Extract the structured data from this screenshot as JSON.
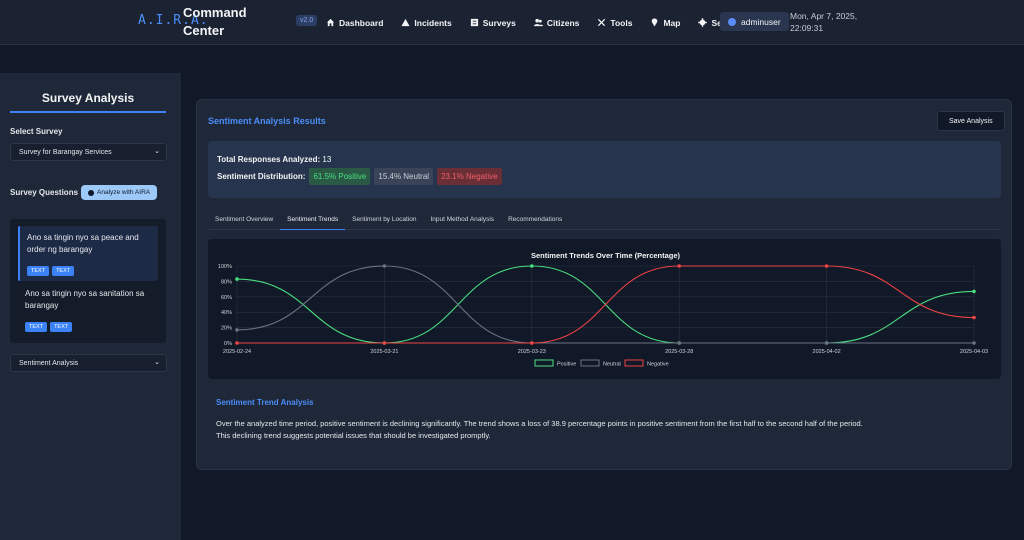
{
  "header": {
    "logo": "A.I.R.A.",
    "title": "Command Center",
    "version": "v2.0",
    "nav": [
      {
        "label": "Dashboard",
        "icon": "home-icon"
      },
      {
        "label": "Incidents",
        "icon": "warning-icon"
      },
      {
        "label": "Surveys",
        "icon": "survey-icon"
      },
      {
        "label": "Citizens",
        "icon": "users-icon"
      },
      {
        "label": "Tools",
        "icon": "tools-icon"
      },
      {
        "label": "Map",
        "icon": "map-pin-icon"
      },
      {
        "label": "Settings",
        "icon": "gear-icon"
      }
    ],
    "user": "adminuser",
    "date": "Mon, Apr 7, 2025,",
    "time": "22:09:31"
  },
  "sidebar": {
    "title": "Survey Analysis",
    "select_survey_label": "Select Survey",
    "selected_survey": "Survey for Barangay Services",
    "questions_label": "Survey Questions",
    "analyze_button": "Analyze with AIRA",
    "questions": [
      {
        "text": "Ano sa tingin nyo sa peace and order ng barangay",
        "tags": [
          "TEXT",
          "TEXT"
        ]
      },
      {
        "text": "Ano sa tingin nyo sa sanitation sa barangay",
        "tags": [
          "TEXT",
          "TEXT"
        ]
      }
    ],
    "analysis_select": "Sentiment Analysis"
  },
  "main": {
    "title": "Sentiment Analysis Results",
    "save_button": "Save Analysis",
    "total_label": "Total Responses Analyzed:",
    "total_value": "13",
    "distribution_label": "Sentiment Distribution:",
    "positive": "61.5% Positive",
    "neutral": "15.4% Neutral",
    "negative": "23.1% Negative",
    "tabs": [
      "Sentiment Overview",
      "Sentiment Trends",
      "Sentiment by Location",
      "Input Method Analysis",
      "Recommendations"
    ],
    "active_tab": 1,
    "analysis_title": "Sentiment Trend Analysis",
    "analysis_text_1": "Over the analyzed time period, positive sentiment is declining significantly. The trend shows a loss of 38.9 percentage points in positive sentiment from the first half to the second half of the period.",
    "analysis_text_2": "This declining trend suggests potential issues that should be investigated promptly."
  },
  "chart_data": {
    "type": "line",
    "title": "Sentiment Trends Over Time (Percentage)",
    "categories": [
      "2025-02-24",
      "2025-03-21",
      "2025-03-23",
      "2025-03-28",
      "2025-04-02",
      "2025-04-03"
    ],
    "y_ticks": [
      "0%",
      "20%",
      "40%",
      "60%",
      "80%",
      "100%"
    ],
    "ylim": [
      0,
      100
    ],
    "grid": true,
    "legend_position": "bottom",
    "series": [
      {
        "name": "Positive",
        "color": "#4ade80",
        "values": [
          83,
          0,
          100,
          0,
          0,
          67
        ]
      },
      {
        "name": "Neutral",
        "color": "#6b7280",
        "values": [
          17,
          100,
          0,
          0,
          0,
          0
        ]
      },
      {
        "name": "Negative",
        "color": "#ef4444",
        "values": [
          0,
          0,
          0,
          100,
          100,
          33
        ]
      }
    ]
  }
}
